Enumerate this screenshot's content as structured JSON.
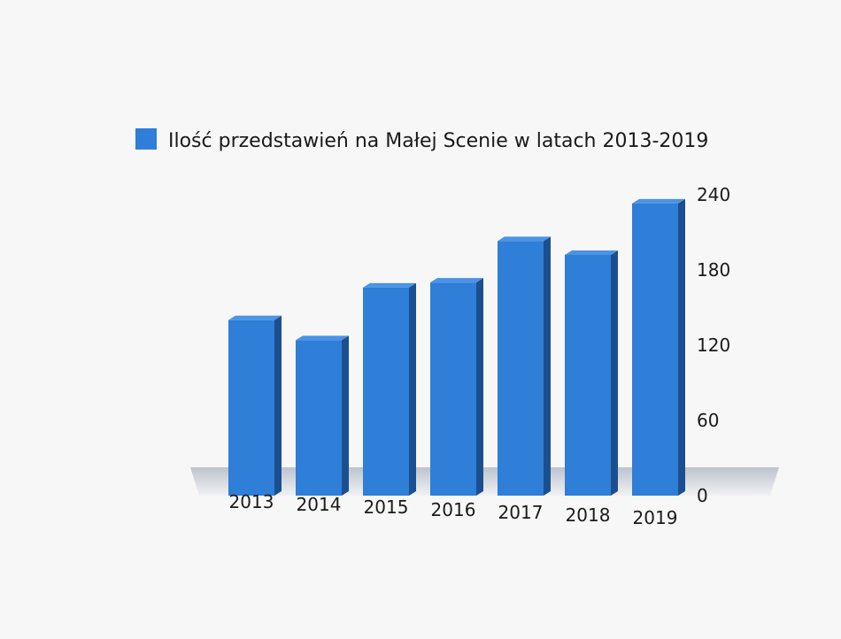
{
  "chart_data": {
    "type": "bar",
    "legend": {
      "label": "Ilość przedstawień na Małej Scenie w latach 2013-2019",
      "position": "top"
    },
    "categories": [
      "2013",
      "2014",
      "2015",
      "2016",
      "2017",
      "2018",
      "2019"
    ],
    "series": [
      {
        "name": "Ilość przedstawień na Małej Scenie w latach 2013-2019",
        "values": [
          140,
          124,
          166,
          170,
          203,
          192,
          233
        ]
      }
    ],
    "ylim": [
      0,
      240
    ],
    "yticks": [
      0,
      60,
      120,
      180,
      240
    ],
    "y_axis_side": "right",
    "grid": false,
    "colors": {
      "bar": "#2f7ed8",
      "bar_side": "#1c4f8f",
      "bar_top": "#4a93e6",
      "floor": "#c9ced6"
    }
  }
}
